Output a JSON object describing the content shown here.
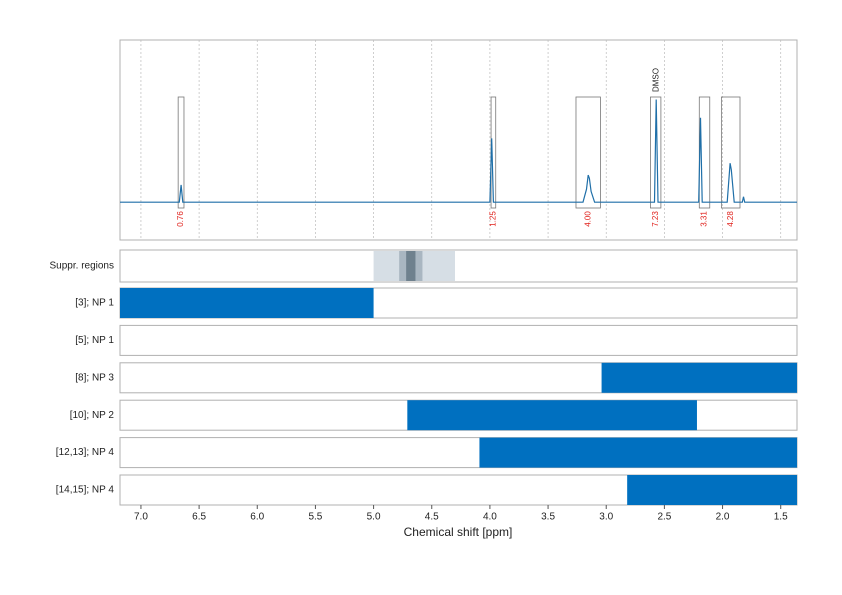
{
  "chart_data": [
    {
      "type": "line",
      "series": [
        {
          "color": "#1f6fa8",
          "x": [
            7.18,
            6.67,
            6.655,
            6.64,
            4.0,
            3.985,
            3.97,
            3.2,
            3.17,
            3.155,
            3.145,
            3.13,
            3.1,
            2.585,
            2.57,
            2.555,
            2.205,
            2.19,
            2.175,
            1.96,
            1.935,
            1.925,
            1.9,
            1.83,
            1.82,
            1.81,
            1.36
          ],
          "values": [
            0,
            0,
            0.16,
            0,
            0,
            0.59,
            0,
            0,
            0.12,
            0.25,
            0.22,
            0.1,
            0,
            0,
            0.95,
            0,
            0,
            0.78,
            0,
            0,
            0.36,
            0.3,
            0,
            0,
            0.05,
            0,
            0
          ]
        }
      ],
      "ylim": [
        -0.35,
        1.5
      ],
      "grid": true,
      "integrals": {
        "color": "#e0201b",
        "ranges": [
          [
            6.68,
            6.63
          ],
          [
            3.99,
            3.95
          ],
          [
            3.26,
            3.05
          ],
          [
            2.62,
            2.53
          ],
          [
            2.2,
            2.11
          ],
          [
            2.01,
            1.85
          ]
        ],
        "values": [
          0.76,
          1.25,
          4,
          7.23,
          3.31,
          4.28
        ],
        "value_labels": [
          "0.76",
          "1.25",
          "4.00",
          "7.23",
          "3.31",
          "4.28"
        ]
      },
      "annotation": {
        "text": "DMSO",
        "x": 2.57
      }
    },
    {
      "type": "band",
      "label": "Suppr. regions",
      "regions": [
        [
          5.0,
          4.3
        ],
        [
          4.78,
          4.58
        ],
        [
          4.72,
          4.64
        ]
      ],
      "colors": [
        "#d6dee5",
        "#a9b6c1",
        "#6f818e"
      ]
    },
    {
      "type": "range",
      "categories": [
        "[3]; NP 1",
        "[5]; NP 1",
        "[8]; NP 3",
        "[10]; NP 2",
        "[12,13]; NP 4",
        "[14,15]; NP 4"
      ],
      "values": [
        [
          7.18,
          5.0
        ],
        null,
        [
          3.04,
          1.36
        ],
        [
          4.71,
          2.22
        ],
        [
          4.09,
          1.36
        ],
        [
          2.82,
          1.36
        ]
      ],
      "color": "#0070c0",
      "xlim": [
        7.18,
        1.36
      ],
      "xticks": [
        {
          "value": 7,
          "label": "7.0"
        },
        6.5,
        {
          "value": 6,
          "label": "6.0"
        },
        5.5,
        {
          "value": 5,
          "label": "5.0"
        },
        4.5,
        {
          "value": 4,
          "label": "4.0"
        },
        3.5,
        {
          "value": 3,
          "label": "3.0"
        },
        2.5,
        {
          "value": 2,
          "label": "2.0"
        },
        1.5
      ],
      "xlabel": "Chemical shift [ppm]"
    }
  ]
}
